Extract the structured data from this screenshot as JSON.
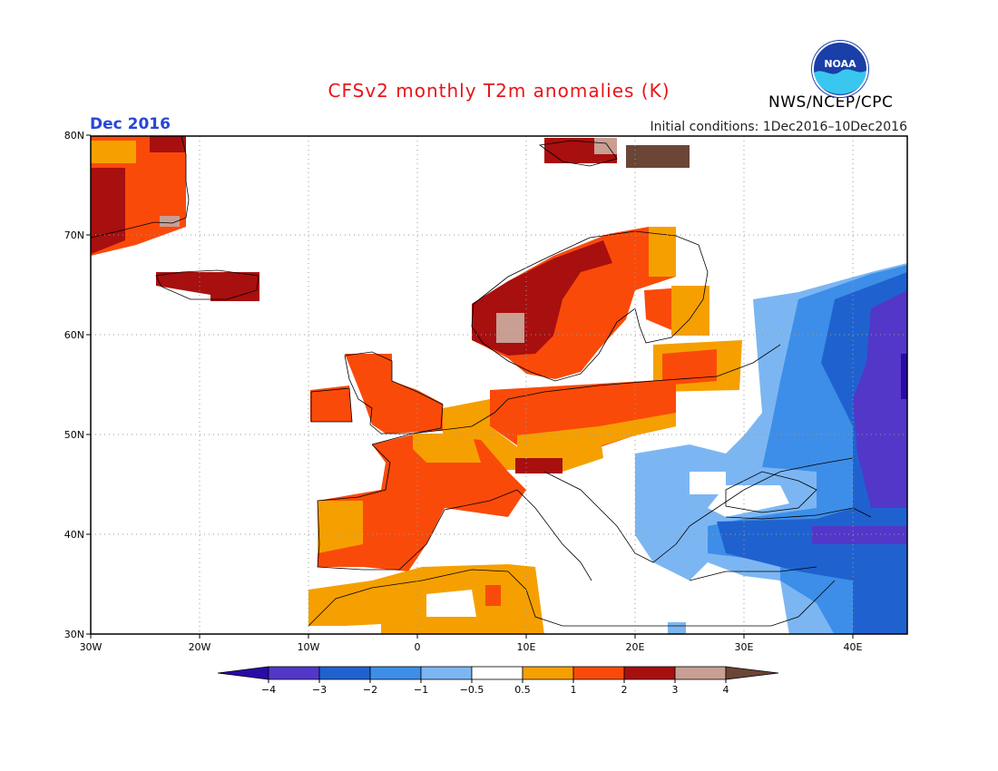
{
  "title": "CFSv2 monthly T2m anomalies (K)",
  "month_label": "Dec 2016",
  "initial_conditions": "Initial conditions: 1Dec2016–10Dec2016",
  "organization": "NWS/NCEP/CPC",
  "logo_text": "NOAA",
  "colors": {
    "title": "#e8141a",
    "month": "#2846d6",
    "logo_blue": "#1a3fa8",
    "logo_cyan": "#39c7ef"
  },
  "map": {
    "lon_ticks": [
      "30W",
      "20W",
      "10W",
      "0",
      "10E",
      "20E",
      "30E",
      "40E"
    ],
    "lat_ticks": [
      "30N",
      "40N",
      "50N",
      "60N",
      "70N",
      "80N"
    ],
    "lon_range": [
      -30,
      45
    ],
    "lat_range": [
      30,
      80
    ],
    "grid": "dotted"
  },
  "colorbar": {
    "labels": [
      "−4",
      "−3",
      "−2",
      "−1",
      "−0.5",
      "0.5",
      "1",
      "2",
      "3",
      "4"
    ],
    "colors": [
      "#2a0aa8",
      "#5237c9",
      "#1f62cf",
      "#3d8ee8",
      "#7cb6f2",
      "#ffffff",
      "#f5a000",
      "#fa4a0a",
      "#a80f0f",
      "#c99e93",
      "#6b4536"
    ]
  }
}
